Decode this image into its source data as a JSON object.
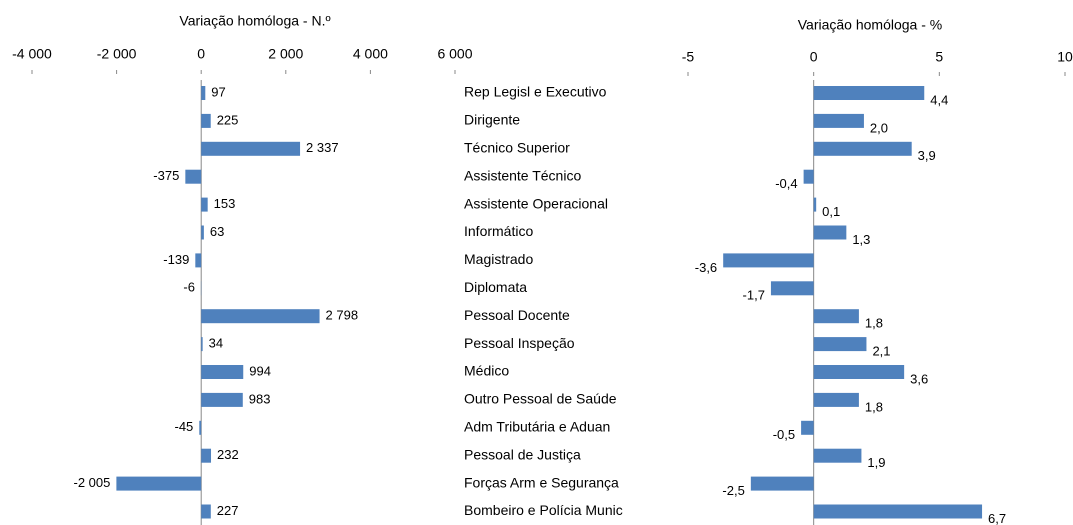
{
  "chart_data": [
    {
      "type": "hbar",
      "title": "Variação homóloga  -  N.º",
      "categories": [
        "Rep Legisl e Executivo",
        "Dirigente",
        "Técnico Superior",
        "Assistente Técnico",
        "Assistente Operacional",
        "Informático",
        "Magistrado",
        "Diplomata",
        "Pessoal Docente",
        "Pessoal Inspeção",
        "Médico",
        "Outro Pessoal de Saúde",
        "Adm Tributária e Aduan",
        "Pessoal de Justiça",
        "Forças Arm e Segurança",
        "Bombeiro e Polícia Munic"
      ],
      "values": [
        97,
        225,
        2337,
        -375,
        153,
        63,
        -139,
        -6,
        2798,
        34,
        994,
        983,
        -45,
        232,
        -2005,
        227
      ],
      "value_labels": [
        "97",
        "225",
        "2 337",
        "-375",
        "153",
        "63",
        "-139",
        "-6",
        "2 798",
        "34",
        "994",
        "983",
        "-45",
        "232",
        "-2 005",
        "227"
      ],
      "color": "#4f81bd",
      "xlim": [
        -4000,
        6000
      ],
      "xticks": [
        {
          "value": -4000,
          "label": "-4 000"
        },
        {
          "value": -2000,
          "label": "-2 000"
        },
        0,
        {
          "value": 2000,
          "label": "2 000"
        },
        {
          "value": 4000,
          "label": "4 000"
        },
        {
          "value": 6000,
          "label": "6 000"
        }
      ]
    },
    {
      "type": "hbar",
      "title": "Variação homóloga  -  %",
      "values": [
        4.4,
        2.0,
        3.9,
        -0.4,
        0.1,
        1.3,
        -3.6,
        -1.7,
        1.8,
        2.1,
        3.6,
        1.8,
        -0.5,
        1.9,
        -2.5,
        6.7
      ],
      "value_labels": [
        "4,4",
        "2,0",
        "3,9",
        "-0,4",
        "0,1",
        "1,3",
        "-3,6",
        "-1,7",
        "1,8",
        "2,1",
        "3,6",
        "1,8",
        "-0,5",
        "1,9",
        "-2,5",
        "6,7"
      ],
      "color": "#4f81bd",
      "xlim": [
        -5,
        10
      ],
      "xticks": [
        -5,
        0,
        5,
        10
      ]
    }
  ]
}
